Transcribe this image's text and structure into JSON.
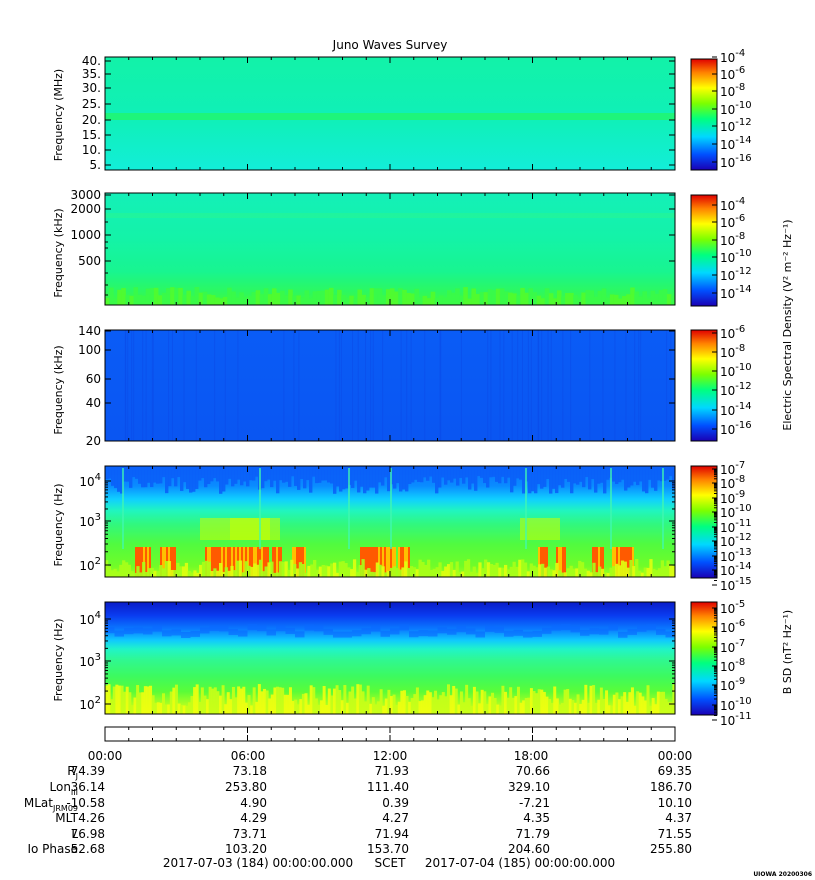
{
  "chart_data": {
    "type": "heatmap",
    "title": "Juno Waves Survey",
    "panels": [
      {
        "ylabel": "Frequency (MHz)",
        "yscale": "linear",
        "ylim": [
          3.5,
          41
        ],
        "yticks": [
          "40.",
          "35.",
          "30.",
          "25.",
          "20.",
          "15.",
          "10.",
          "5."
        ],
        "cbar_ticks": [
          "-4",
          "-6",
          "-8",
          "-10",
          "-12",
          "-14",
          "-16"
        ],
        "cbar_label": "",
        "features": [
          {
            "description": "narrow band",
            "frequency": 21.5
          }
        ]
      },
      {
        "ylabel": "Frequency (kHz)",
        "yscale": "log",
        "ylim": [
          150,
          3000
        ],
        "yticks": [
          "3000",
          "2000",
          "1000",
          "500"
        ],
        "cbar_ticks": [
          "-4",
          "-6",
          "-8",
          "-10",
          "-12",
          "-14"
        ],
        "cbar_label": "Electric Spectral Density (V² m⁻² Hz⁻¹)"
      },
      {
        "ylabel": "Frequency (kHz)",
        "yscale": "log",
        "ylim": [
          20,
          140
        ],
        "yticks": [
          "140",
          "100",
          "60",
          "40",
          "20"
        ],
        "cbar_ticks": [
          "-6",
          "-8",
          "-10",
          "-12",
          "-14",
          "-16"
        ],
        "cbar_label": ""
      },
      {
        "ylabel": "Frequency (Hz)",
        "yscale": "log",
        "ylim": [
          50,
          20000
        ],
        "yticks": [
          "4",
          "3",
          "2"
        ],
        "cbar_ticks": [
          "-7",
          "-8",
          "-9",
          "-10",
          "-11",
          "-12",
          "-13",
          "-14",
          "-15"
        ],
        "cbar_label": ""
      },
      {
        "ylabel": "Frequency (Hz)",
        "yscale": "log",
        "ylim": [
          50,
          20000
        ],
        "yticks": [
          "4",
          "3",
          "2"
        ],
        "cbar_ticks": [
          "-5",
          "-6",
          "-7",
          "-8",
          "-9",
          "-10",
          "-11"
        ],
        "cbar_label": "B SD (nT² Hz⁻¹)"
      }
    ],
    "x_tick_labels": [
      "00:00",
      "06:00",
      "12:00",
      "18:00",
      "00:00"
    ],
    "ephemeris": [
      {
        "label": "R",
        "sub": "J",
        "values": [
          "74.39",
          "73.18",
          "71.93",
          "70.66",
          "69.35"
        ]
      },
      {
        "label": "Lon",
        "sub": "III",
        "values": [
          "36.14",
          "253.80",
          "111.40",
          "329.10",
          "186.70"
        ]
      },
      {
        "label": "MLat",
        "sub": "JRM09",
        "values": [
          "-10.58",
          "4.90",
          "0.39",
          "-7.21",
          "10.10"
        ]
      },
      {
        "label": "MLT",
        "sub": "",
        "values": [
          "4.26",
          "4.29",
          "4.27",
          "4.35",
          "4.37"
        ]
      },
      {
        "label": "L",
        "sub": "",
        "values": [
          "76.98",
          "73.71",
          "71.94",
          "71.79",
          "71.55"
        ]
      },
      {
        "label": "Io Phase",
        "sub": "",
        "values": [
          "52.68",
          "103.20",
          "153.70",
          "204.60",
          "255.80"
        ]
      }
    ],
    "time_range": {
      "start": "2017-07-03 (184) 00:00:00.000",
      "label": "SCET",
      "end": "2017-07-04 (185) 00:00:00.000"
    },
    "footer": "UIOWA 20200306"
  }
}
